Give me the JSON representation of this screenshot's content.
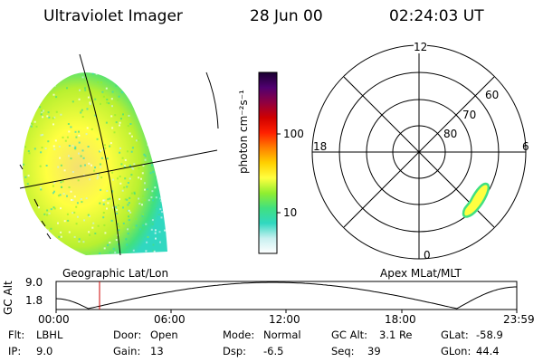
{
  "header": {
    "instrument": "Ultraviolet Imager",
    "date": "28 Jun 00",
    "time": "02:24:03 UT"
  },
  "left_panel": {
    "label": "Geographic Lat/Lon"
  },
  "right_panel": {
    "label": "Apex MLat/MLT",
    "mlt_labels": {
      "top": "12",
      "left": "18",
      "right": "6",
      "bottom": "0"
    },
    "lat_labels": [
      "60",
      "70",
      "80"
    ]
  },
  "colorbar": {
    "unit": "photon cm⁻²s⁻¹",
    "ticks": [
      "100",
      "10"
    ],
    "colors": [
      "#ffffff",
      "#c8f0f0",
      "#30d8c0",
      "#40e080",
      "#90ee30",
      "#ffff40",
      "#ffd000",
      "#ff8000",
      "#ff2000",
      "#d00000",
      "#900040",
      "#500070",
      "#1a0030"
    ]
  },
  "timeline": {
    "axis_label": "GC Alt",
    "y_ticks": [
      "9.0",
      "1.8"
    ],
    "x_ticks": [
      "00:00",
      "06:00",
      "12:00",
      "18:00",
      "23:59"
    ],
    "current_marker_color": "#cc0000"
  },
  "status": {
    "flt_label": "Flt:",
    "flt_value": "LBHL",
    "door_label": "Door:",
    "door_value": "Open",
    "mode_label": "Mode:",
    "mode_value": "Normal",
    "gcalt_label": "GC Alt:",
    "gcalt_value": "3.1 Re",
    "glat_label": "GLat:",
    "glat_value": "-58.9",
    "ip_label": "IP:",
    "ip_value": "9.0",
    "gain_label": "Gain:",
    "gain_value": "13",
    "dsp_label": "Dsp:",
    "dsp_value": "-6.5",
    "seq_label": "Seq:",
    "seq_value": "39",
    "glon_label": "GLon:",
    "glon_value": "44.4"
  }
}
